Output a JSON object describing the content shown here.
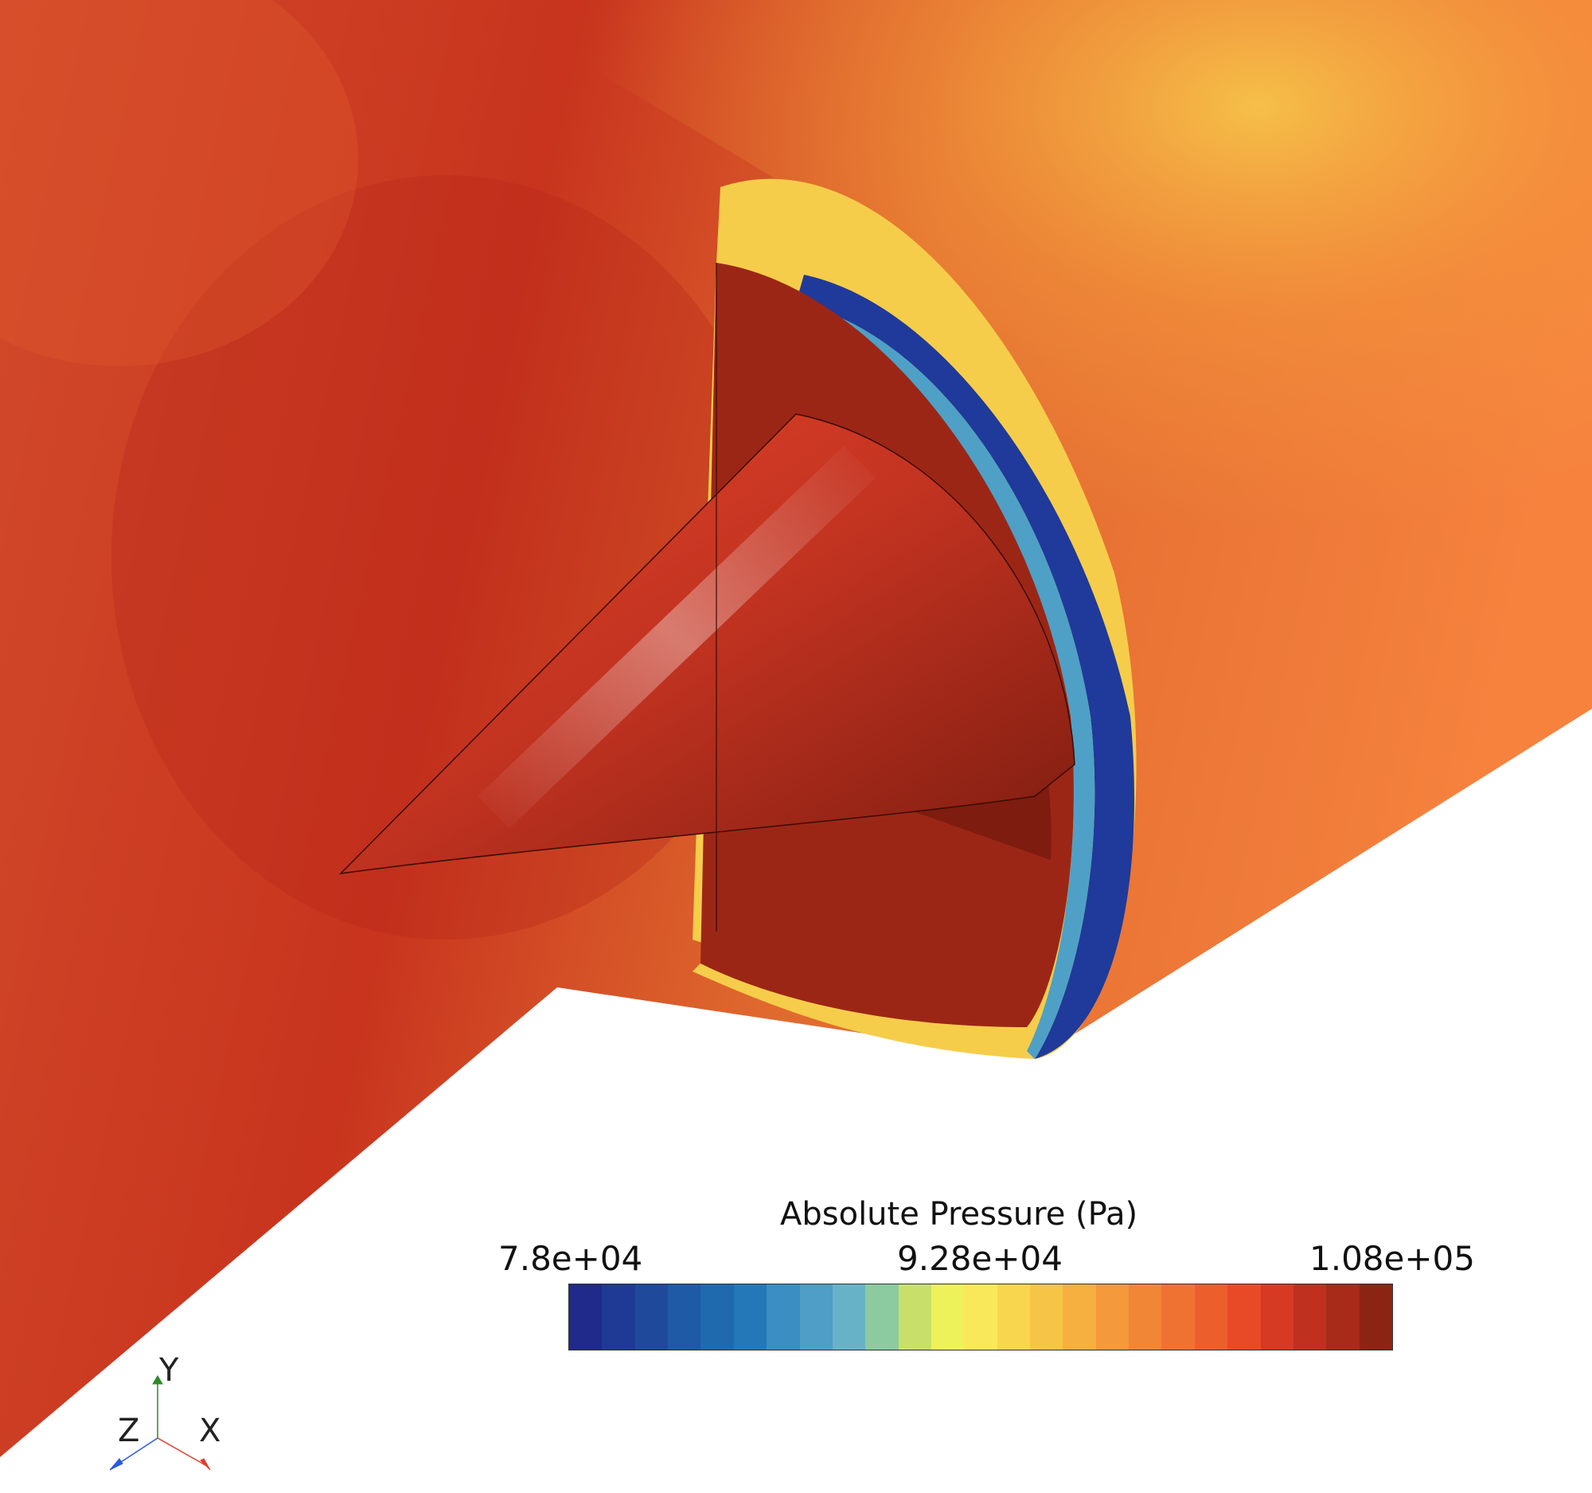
{
  "legend": {
    "title": "Absolute Pressure (Pa)",
    "min_label": "7.8e+04",
    "mid_label": "9.28e+04",
    "max_label": "1.08e+05",
    "colors": [
      "#1f2a8a",
      "#1e3a94",
      "#1f4a9c",
      "#1e5aa6",
      "#1f6aae",
      "#2478b8",
      "#3a8ec2",
      "#4f9ec7",
      "#68b2c8",
      "#8ccaa0",
      "#c8e06a",
      "#eef25a",
      "#f8e85a",
      "#f8d64e",
      "#f6c447",
      "#f5b040",
      "#f49a3c",
      "#f28637",
      "#ef7232",
      "#ed5e2d",
      "#e84a28",
      "#d63a22",
      "#c0301e",
      "#a82a19",
      "#8c2414"
    ]
  },
  "axes_triad": {
    "x": "X",
    "y": "Y",
    "z": "Z",
    "x_color": "#e03a2a",
    "y_color": "#2a8a2a",
    "z_color": "#2a5ae0"
  }
}
